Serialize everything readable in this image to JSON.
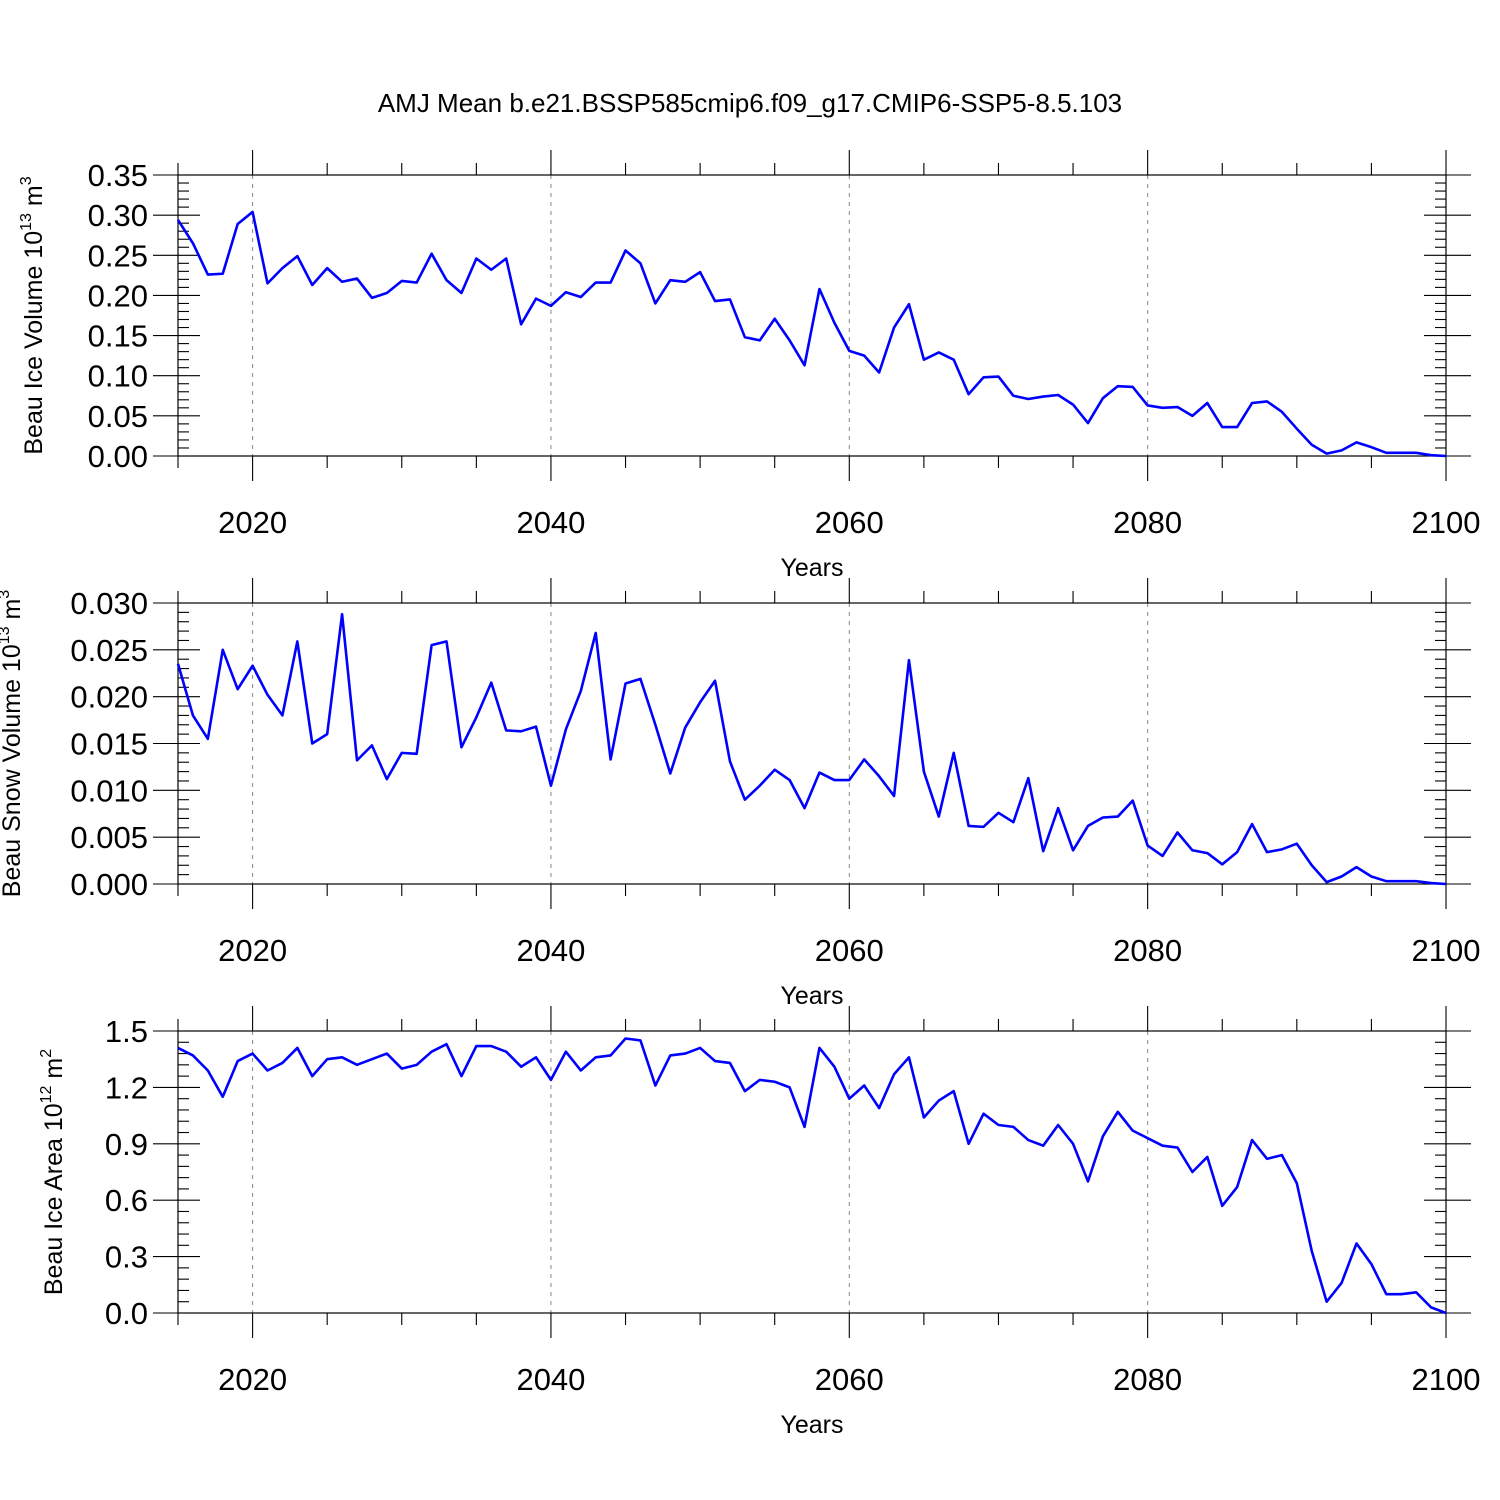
{
  "page": {
    "title": "AMJ Mean b.e21.BSSP585cmip6.f09_g17.CMIP6-SSP5-8.5.103"
  },
  "chart_data": [
    {
      "type": "line",
      "title": "AMJ Mean b.e21.BSSP585cmip6.f09_g17.CMIP6-SSP5-8.5.103",
      "xlabel": "Years",
      "ylabel_main": "Beau Ice Volume 10",
      "ylabel_sup": "13",
      "ylabel_unit": " m",
      "ylabel_unit_sup": "3",
      "xlim": [
        2015,
        2100
      ],
      "ylim": [
        0,
        0.35
      ],
      "yticks": [
        0,
        0.05,
        0.1,
        0.15,
        0.2,
        0.25,
        0.3,
        0.35
      ],
      "ytick_labels": [
        "0.00",
        "0.05",
        "0.10",
        "0.15",
        "0.20",
        "0.25",
        "0.30",
        "0.35"
      ],
      "xticks": [
        2020,
        2040,
        2060,
        2080,
        2100
      ],
      "xtick_labels": [
        "2020",
        "2040",
        "2060",
        "2080",
        "2100"
      ],
      "x_start": 2015,
      "series": [
        {
          "name": "Beau Ice Volume",
          "color": "#0000ff",
          "values": [
            0.294,
            0.265,
            0.226,
            0.227,
            0.289,
            0.304,
            0.215,
            0.234,
            0.249,
            0.213,
            0.234,
            0.217,
            0.221,
            0.197,
            0.203,
            0.218,
            0.216,
            0.252,
            0.219,
            0.203,
            0.246,
            0.232,
            0.246,
            0.164,
            0.196,
            0.187,
            0.204,
            0.198,
            0.216,
            0.216,
            0.256,
            0.24,
            0.19,
            0.219,
            0.217,
            0.229,
            0.193,
            0.195,
            0.148,
            0.144,
            0.171,
            0.144,
            0.113,
            0.208,
            0.166,
            0.131,
            0.125,
            0.104,
            0.16,
            0.189,
            0.12,
            0.129,
            0.12,
            0.077,
            0.098,
            0.099,
            0.075,
            0.071,
            0.074,
            0.076,
            0.064,
            0.041,
            0.072,
            0.087,
            0.086,
            0.063,
            0.06,
            0.061,
            0.05,
            0.066,
            0.036,
            0.036,
            0.066,
            0.068,
            0.055,
            0.034,
            0.014,
            0.003,
            0.007,
            0.017,
            0.011,
            0.004,
            0.004,
            0.004,
            0.001,
            0.0
          ]
        }
      ]
    },
    {
      "type": "line",
      "xlabel": "Years",
      "ylabel_main": "Beau Snow Volume 10",
      "ylabel_sup": "13",
      "ylabel_unit": " m",
      "ylabel_unit_sup": "3",
      "xlim": [
        2015,
        2100
      ],
      "ylim": [
        0,
        0.03
      ],
      "yticks": [
        0,
        0.005,
        0.01,
        0.015,
        0.02,
        0.025,
        0.03
      ],
      "ytick_labels": [
        "0.000",
        "0.005",
        "0.010",
        "0.015",
        "0.020",
        "0.025",
        "0.030"
      ],
      "xticks": [
        2020,
        2040,
        2060,
        2080,
        2100
      ],
      "xtick_labels": [
        "2020",
        "2040",
        "2060",
        "2080",
        "2100"
      ],
      "x_start": 2015,
      "series": [
        {
          "name": "Beau Snow Volume",
          "color": "#0000ff",
          "values": [
            0.0235,
            0.018,
            0.0155,
            0.025,
            0.0208,
            0.0233,
            0.0202,
            0.018,
            0.0259,
            0.015,
            0.016,
            0.0288,
            0.0132,
            0.0148,
            0.0112,
            0.014,
            0.0139,
            0.0255,
            0.0259,
            0.0146,
            0.0178,
            0.0215,
            0.0164,
            0.0163,
            0.0168,
            0.0105,
            0.0165,
            0.0206,
            0.0268,
            0.0133,
            0.0214,
            0.0219,
            0.017,
            0.0118,
            0.0167,
            0.0194,
            0.0217,
            0.0131,
            0.009,
            0.0105,
            0.0122,
            0.0111,
            0.0081,
            0.0119,
            0.0111,
            0.0111,
            0.0133,
            0.0115,
            0.0094,
            0.0239,
            0.012,
            0.0072,
            0.014,
            0.0062,
            0.0061,
            0.0076,
            0.0066,
            0.0113,
            0.0035,
            0.0081,
            0.0036,
            0.0062,
            0.0071,
            0.0072,
            0.0089,
            0.0041,
            0.003,
            0.0055,
            0.0036,
            0.0033,
            0.0021,
            0.0034,
            0.0064,
            0.0034,
            0.0037,
            0.0043,
            0.002,
            0.0002,
            0.0008,
            0.0018,
            0.0008,
            0.0003,
            0.0003,
            0.0003,
            0.0001,
            0.0
          ]
        }
      ]
    },
    {
      "type": "line",
      "xlabel": "Years",
      "ylabel_main": "Beau Ice Area 10",
      "ylabel_sup": "12",
      "ylabel_unit": " m",
      "ylabel_unit_sup": "2",
      "xlim": [
        2015,
        2100
      ],
      "ylim": [
        0,
        1.5
      ],
      "yticks": [
        0,
        0.3,
        0.6,
        0.9,
        1.2,
        1.5
      ],
      "ytick_labels": [
        "0.0",
        "0.3",
        "0.6",
        "0.9",
        "1.2",
        "1.5"
      ],
      "xticks": [
        2020,
        2040,
        2060,
        2080,
        2100
      ],
      "xtick_labels": [
        "2020",
        "2040",
        "2060",
        "2080",
        "2100"
      ],
      "x_start": 2015,
      "series": [
        {
          "name": "Beau Ice Area",
          "color": "#0000ff",
          "values": [
            1.41,
            1.37,
            1.29,
            1.15,
            1.34,
            1.38,
            1.29,
            1.33,
            1.41,
            1.26,
            1.35,
            1.36,
            1.32,
            1.35,
            1.38,
            1.3,
            1.32,
            1.39,
            1.43,
            1.26,
            1.42,
            1.42,
            1.39,
            1.31,
            1.36,
            1.24,
            1.39,
            1.29,
            1.36,
            1.37,
            1.46,
            1.45,
            1.21,
            1.37,
            1.38,
            1.41,
            1.34,
            1.33,
            1.18,
            1.24,
            1.23,
            1.2,
            0.99,
            1.41,
            1.31,
            1.14,
            1.21,
            1.09,
            1.27,
            1.36,
            1.04,
            1.13,
            1.18,
            0.9,
            1.06,
            1.0,
            0.99,
            0.92,
            0.89,
            1.0,
            0.9,
            0.7,
            0.94,
            1.07,
            0.97,
            0.93,
            0.89,
            0.88,
            0.75,
            0.83,
            0.57,
            0.67,
            0.92,
            0.82,
            0.84,
            0.69,
            0.33,
            0.06,
            0.16,
            0.37,
            0.26,
            0.1,
            0.1,
            0.11,
            0.03,
            0.0
          ]
        }
      ]
    }
  ]
}
